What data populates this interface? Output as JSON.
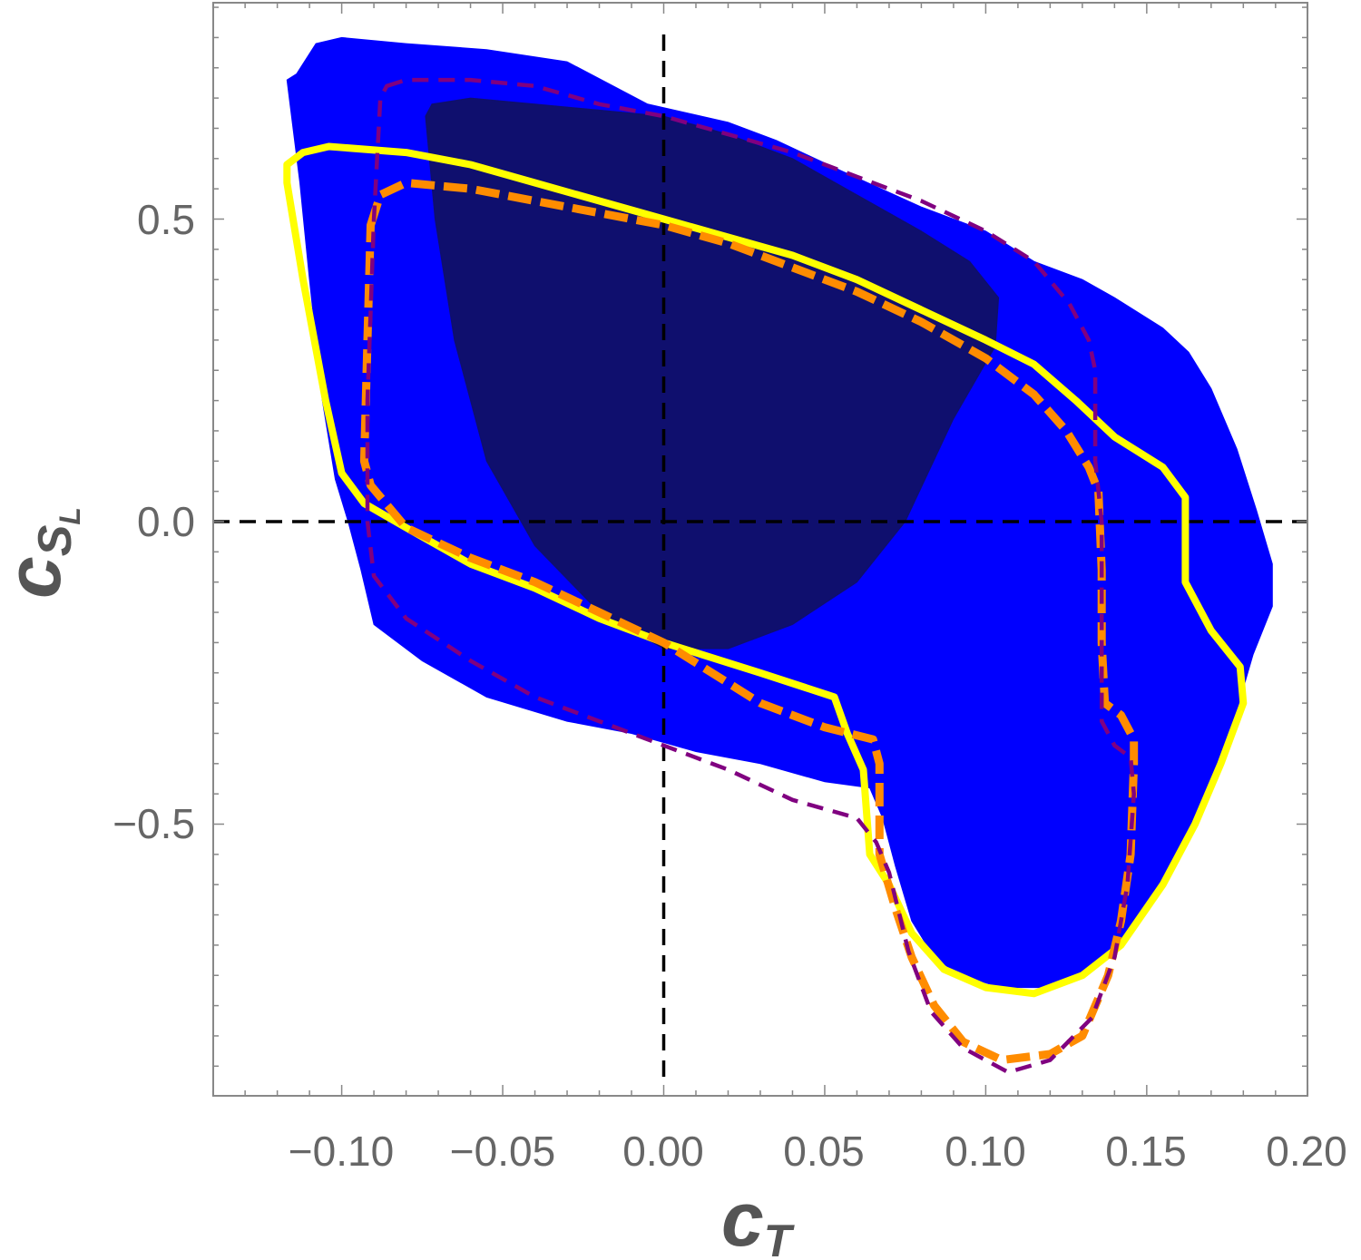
{
  "chart_data": {
    "type": "contour",
    "title": "",
    "xlabel": {
      "main": "c",
      "sub": "T"
    },
    "ylabel": {
      "main": "c",
      "sub": "S",
      "subsub": "L"
    },
    "xlim": [
      -0.14,
      0.2
    ],
    "ylim": [
      -0.95,
      0.86
    ],
    "x_ticks": [
      -0.1,
      -0.05,
      0.0,
      0.05,
      0.1,
      0.15,
      0.2
    ],
    "x_tick_labels": [
      "−0.10",
      "−0.05",
      "0.00",
      "0.05",
      "0.10",
      "0.15",
      "0.20"
    ],
    "y_ticks": [
      -0.5,
      0.0,
      0.5
    ],
    "y_tick_labels": [
      "−0.5",
      "0.0",
      "0.5"
    ],
    "reference_lines": {
      "x": 0.0,
      "y": 0.0,
      "style": "dashed",
      "color": "#000000"
    },
    "colors": {
      "region_outer": "#0000ff",
      "region_inner": "#0f0f6e",
      "yellow_contour": "#ffff00",
      "orange_contour": "#ff8c00",
      "purple_contour": "#800080"
    },
    "series": [
      {
        "style": "filled",
        "color": "#0000ff",
        "points": [
          [
            -0.114,
            0.74
          ],
          [
            -0.108,
            0.79
          ],
          [
            -0.1,
            0.8
          ],
          [
            -0.08,
            0.79
          ],
          [
            -0.055,
            0.78
          ],
          [
            -0.03,
            0.76
          ],
          [
            -0.005,
            0.69
          ],
          [
            0.02,
            0.66
          ],
          [
            0.035,
            0.63
          ],
          [
            0.055,
            0.58
          ],
          [
            0.08,
            0.52
          ],
          [
            0.1,
            0.48
          ],
          [
            0.115,
            0.43
          ],
          [
            0.13,
            0.4
          ],
          [
            0.14,
            0.37
          ],
          [
            0.155,
            0.32
          ],
          [
            0.163,
            0.28
          ],
          [
            0.17,
            0.22
          ],
          [
            0.178,
            0.12
          ],
          [
            0.184,
            0.02
          ],
          [
            0.189,
            -0.07
          ],
          [
            0.189,
            -0.14
          ],
          [
            0.183,
            -0.22
          ],
          [
            0.177,
            -0.33
          ],
          [
            0.168,
            -0.46
          ],
          [
            0.158,
            -0.58
          ],
          [
            0.145,
            -0.68
          ],
          [
            0.135,
            -0.73
          ],
          [
            0.12,
            -0.77
          ],
          [
            0.105,
            -0.77
          ],
          [
            0.092,
            -0.75
          ],
          [
            0.084,
            -0.72
          ],
          [
            0.077,
            -0.66
          ],
          [
            0.072,
            -0.57
          ],
          [
            0.068,
            -0.49
          ],
          [
            0.064,
            -0.44
          ],
          [
            0.05,
            -0.43
          ],
          [
            0.03,
            -0.4
          ],
          [
            0.01,
            -0.38
          ],
          [
            -0.01,
            -0.35
          ],
          [
            -0.03,
            -0.33
          ],
          [
            -0.055,
            -0.29
          ],
          [
            -0.075,
            -0.23
          ],
          [
            -0.09,
            -0.17
          ],
          [
            -0.094,
            -0.08
          ],
          [
            -0.098,
            0.0
          ],
          [
            -0.102,
            0.07
          ],
          [
            -0.106,
            0.2
          ],
          [
            -0.11,
            0.4
          ],
          [
            -0.113,
            0.56
          ],
          [
            -0.117,
            0.73
          ]
        ]
      },
      {
        "style": "filled",
        "color": "#0f0f6e",
        "points": [
          [
            -0.072,
            0.69
          ],
          [
            -0.06,
            0.7
          ],
          [
            -0.04,
            0.69
          ],
          [
            -0.02,
            0.68
          ],
          [
            0.0,
            0.67
          ],
          [
            0.02,
            0.64
          ],
          [
            0.04,
            0.6
          ],
          [
            0.06,
            0.54
          ],
          [
            0.08,
            0.48
          ],
          [
            0.095,
            0.43
          ],
          [
            0.104,
            0.37
          ],
          [
            0.103,
            0.29
          ],
          [
            0.09,
            0.17
          ],
          [
            0.075,
            0.0
          ],
          [
            0.06,
            -0.1
          ],
          [
            0.04,
            -0.17
          ],
          [
            0.02,
            -0.21
          ],
          [
            0.0,
            -0.21
          ],
          [
            -0.02,
            -0.15
          ],
          [
            -0.04,
            -0.04
          ],
          [
            -0.055,
            0.1
          ],
          [
            -0.065,
            0.3
          ],
          [
            -0.071,
            0.5
          ],
          [
            -0.074,
            0.67
          ]
        ]
      },
      {
        "style": "line",
        "color": "#ffff00",
        "points": [
          [
            -0.117,
            0.59
          ],
          [
            -0.112,
            0.61
          ],
          [
            -0.104,
            0.62
          ],
          [
            -0.08,
            0.61
          ],
          [
            -0.06,
            0.59
          ],
          [
            -0.04,
            0.56
          ],
          [
            -0.02,
            0.53
          ],
          [
            0.0,
            0.5
          ],
          [
            0.02,
            0.47
          ],
          [
            0.04,
            0.44
          ],
          [
            0.06,
            0.4
          ],
          [
            0.08,
            0.35
          ],
          [
            0.1,
            0.3
          ],
          [
            0.115,
            0.26
          ],
          [
            0.128,
            0.2
          ],
          [
            0.14,
            0.14
          ],
          [
            0.155,
            0.09
          ],
          [
            0.162,
            0.04
          ],
          [
            0.162,
            -0.04
          ],
          [
            0.162,
            -0.1
          ],
          [
            0.17,
            -0.18
          ],
          [
            0.179,
            -0.24
          ],
          [
            0.18,
            -0.3
          ],
          [
            0.173,
            -0.4
          ],
          [
            0.165,
            -0.5
          ],
          [
            0.155,
            -0.6
          ],
          [
            0.142,
            -0.7
          ],
          [
            0.13,
            -0.75
          ],
          [
            0.115,
            -0.78
          ],
          [
            0.1,
            -0.77
          ],
          [
            0.087,
            -0.74
          ],
          [
            0.077,
            -0.68
          ],
          [
            0.07,
            -0.6
          ],
          [
            0.064,
            -0.55
          ],
          [
            0.062,
            -0.41
          ],
          [
            0.057,
            -0.35
          ],
          [
            0.053,
            -0.29
          ],
          [
            0.03,
            -0.25
          ],
          [
            0.0,
            -0.2
          ],
          [
            -0.02,
            -0.16
          ],
          [
            -0.04,
            -0.11
          ],
          [
            -0.06,
            -0.07
          ],
          [
            -0.08,
            -0.01
          ],
          [
            -0.093,
            0.03
          ],
          [
            -0.1,
            0.08
          ],
          [
            -0.105,
            0.2
          ],
          [
            -0.112,
            0.4
          ],
          [
            -0.117,
            0.56
          ]
        ]
      },
      {
        "style": "dashed",
        "color": "#ff8c00",
        "points": [
          [
            -0.091,
            0.49
          ],
          [
            -0.088,
            0.54
          ],
          [
            -0.08,
            0.56
          ],
          [
            -0.06,
            0.55
          ],
          [
            -0.04,
            0.53
          ],
          [
            -0.02,
            0.51
          ],
          [
            0.0,
            0.49
          ],
          [
            0.02,
            0.46
          ],
          [
            0.04,
            0.42
          ],
          [
            0.06,
            0.38
          ],
          [
            0.08,
            0.33
          ],
          [
            0.1,
            0.27
          ],
          [
            0.115,
            0.21
          ],
          [
            0.125,
            0.15
          ],
          [
            0.132,
            0.09
          ],
          [
            0.135,
            0.05
          ],
          [
            0.136,
            -0.08
          ],
          [
            0.136,
            -0.2
          ],
          [
            0.137,
            -0.3
          ],
          [
            0.142,
            -0.32
          ],
          [
            0.146,
            -0.36
          ],
          [
            0.146,
            -0.4
          ],
          [
            0.145,
            -0.55
          ],
          [
            0.142,
            -0.66
          ],
          [
            0.138,
            -0.75
          ],
          [
            0.13,
            -0.85
          ],
          [
            0.12,
            -0.88
          ],
          [
            0.105,
            -0.89
          ],
          [
            0.093,
            -0.86
          ],
          [
            0.084,
            -0.8
          ],
          [
            0.077,
            -0.72
          ],
          [
            0.072,
            -0.64
          ],
          [
            0.067,
            -0.55
          ],
          [
            0.067,
            -0.4
          ],
          [
            0.065,
            -0.36
          ],
          [
            0.05,
            -0.34
          ],
          [
            0.03,
            -0.3
          ],
          [
            0.0,
            -0.2
          ],
          [
            -0.02,
            -0.15
          ],
          [
            -0.04,
            -0.1
          ],
          [
            -0.06,
            -0.06
          ],
          [
            -0.08,
            -0.01
          ],
          [
            -0.091,
            0.06
          ],
          [
            -0.093,
            0.1
          ],
          [
            -0.092,
            0.3
          ]
        ]
      },
      {
        "style": "dashed",
        "color": "#800080",
        "points": [
          [
            -0.086,
            0.72
          ],
          [
            -0.08,
            0.73
          ],
          [
            -0.06,
            0.73
          ],
          [
            -0.04,
            0.72
          ],
          [
            -0.02,
            0.69
          ],
          [
            0.0,
            0.67
          ],
          [
            0.02,
            0.64
          ],
          [
            0.04,
            0.61
          ],
          [
            0.06,
            0.57
          ],
          [
            0.08,
            0.53
          ],
          [
            0.1,
            0.48
          ],
          [
            0.115,
            0.43
          ],
          [
            0.126,
            0.36
          ],
          [
            0.132,
            0.3
          ],
          [
            0.134,
            0.25
          ],
          [
            0.134,
            0.1
          ],
          [
            0.136,
            0.0
          ],
          [
            0.136,
            -0.15
          ],
          [
            0.136,
            -0.33
          ],
          [
            0.14,
            -0.37
          ],
          [
            0.145,
            -0.39
          ],
          [
            0.146,
            -0.45
          ],
          [
            0.144,
            -0.6
          ],
          [
            0.14,
            -0.72
          ],
          [
            0.133,
            -0.82
          ],
          [
            0.12,
            -0.89
          ],
          [
            0.107,
            -0.91
          ],
          [
            0.093,
            -0.87
          ],
          [
            0.083,
            -0.81
          ],
          [
            0.076,
            -0.71
          ],
          [
            0.07,
            -0.58
          ],
          [
            0.066,
            -0.53
          ],
          [
            0.06,
            -0.49
          ],
          [
            0.04,
            -0.46
          ],
          [
            0.02,
            -0.41
          ],
          [
            0.0,
            -0.37
          ],
          [
            -0.02,
            -0.33
          ],
          [
            -0.04,
            -0.29
          ],
          [
            -0.06,
            -0.23
          ],
          [
            -0.08,
            -0.16
          ],
          [
            -0.09,
            -0.09
          ],
          [
            -0.092,
            0.0
          ],
          [
            -0.092,
            0.2
          ],
          [
            -0.09,
            0.5
          ],
          [
            -0.088,
            0.7
          ]
        ]
      }
    ]
  }
}
